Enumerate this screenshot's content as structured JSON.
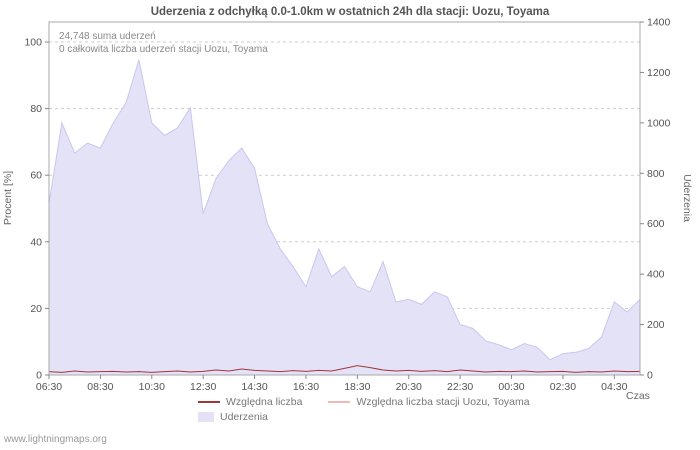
{
  "title": "Uderzenia z odchyłką 0.0-1.0km w ostatnich 24h dla stacji: Uozu, Toyama",
  "annotations": {
    "sum": "24,748 suma uderzeń",
    "station_total": "0 całkowita liczba uderzeń stacji Uozu, Toyama"
  },
  "axes": {
    "left_label": "Procent  [%]",
    "right_label": "Uderzenia",
    "x_label": "Czas"
  },
  "legend": {
    "items": [
      {
        "label": "Względna liczba",
        "swatch": "line",
        "color": "#a03636"
      },
      {
        "label": "Względna liczba stacji Uozu, Toyama",
        "swatch": "line",
        "color": "#f0b8b8"
      },
      {
        "label": "Uderzenia",
        "swatch": "area",
        "color": "#e4e2f7"
      }
    ]
  },
  "watermark": "www.lightningmaps.org",
  "chart_data": {
    "type": "area",
    "title": "Uderzenia z odchyłką 0.0-1.0km w ostatnich 24h dla stacji: Uozu, Toyama",
    "x": [
      "06:30",
      "07:00",
      "07:30",
      "08:00",
      "08:30",
      "09:00",
      "09:30",
      "10:00",
      "10:30",
      "11:00",
      "11:30",
      "12:00",
      "12:30",
      "13:00",
      "13:30",
      "14:00",
      "14:30",
      "15:00",
      "15:30",
      "16:00",
      "16:30",
      "17:00",
      "17:30",
      "18:00",
      "18:30",
      "19:00",
      "19:30",
      "20:00",
      "20:30",
      "21:00",
      "21:30",
      "22:00",
      "22:30",
      "23:00",
      "23:30",
      "00:00",
      "00:30",
      "01:00",
      "01:30",
      "02:00",
      "02:30",
      "03:00",
      "03:30",
      "04:00",
      "04:30",
      "05:00",
      "05:30"
    ],
    "x_tick_every": 4,
    "series": [
      {
        "name": "Uderzenia",
        "type": "area",
        "axis": "right",
        "color": "#e4e2f7",
        "edge_color": "#cac6ee",
        "values": [
          680,
          1000,
          880,
          920,
          900,
          1000,
          1080,
          1250,
          1000,
          950,
          980,
          1060,
          640,
          780,
          850,
          900,
          820,
          600,
          500,
          430,
          350,
          500,
          390,
          430,
          350,
          330,
          450,
          290,
          300,
          280,
          330,
          310,
          200,
          185,
          135,
          120,
          100,
          125,
          110,
          60,
          85,
          90,
          105,
          150,
          290,
          250,
          300
        ]
      },
      {
        "name": "Względna liczba stacji Uozu, Toyama",
        "type": "line",
        "axis": "left",
        "color": "#f0b8b8",
        "values": [
          0,
          0,
          0,
          0,
          0,
          0,
          0,
          0,
          0,
          0,
          0,
          0,
          0,
          0,
          0,
          0,
          0,
          0,
          0,
          0,
          0,
          0,
          0,
          0,
          0,
          0,
          0,
          0,
          0,
          0,
          0,
          0,
          0,
          0,
          0,
          0,
          0,
          0,
          0,
          0,
          0,
          0,
          0,
          0,
          0,
          0,
          0
        ]
      },
      {
        "name": "Względna liczba",
        "type": "line",
        "axis": "left",
        "color": "#a03636",
        "values": [
          1.0,
          0.8,
          1.2,
          0.9,
          1.0,
          1.1,
          0.9,
          1.0,
          0.8,
          1.0,
          1.2,
          0.9,
          1.1,
          1.5,
          1.2,
          1.8,
          1.4,
          1.2,
          1.0,
          1.3,
          1.1,
          1.4,
          1.2,
          2.0,
          2.8,
          2.2,
          1.5,
          1.2,
          1.4,
          1.1,
          1.3,
          1.0,
          1.5,
          1.2,
          0.9,
          1.1,
          1.0,
          1.2,
          0.9,
          1.0,
          1.1,
          0.8,
          1.0,
          0.9,
          1.2,
          1.0,
          1.1
        ]
      }
    ],
    "left_axis": {
      "label": "Procent [%]",
      "min": 0,
      "max": 100,
      "ticks": [
        0,
        20,
        40,
        60,
        80,
        100
      ]
    },
    "right_axis": {
      "label": "Uderzenia",
      "min": 0,
      "max": 1400,
      "ticks": [
        0,
        200,
        400,
        600,
        800,
        1000,
        1200,
        1400
      ]
    },
    "grid": "horizontal-dashed",
    "legend_position": "bottom"
  }
}
